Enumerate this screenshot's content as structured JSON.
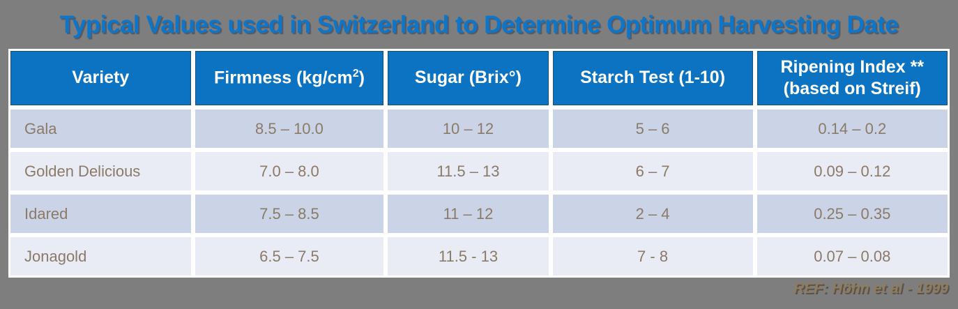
{
  "title": "Typical Values used in Switzerland to Determine Optimum Harvesting Date",
  "reference": "REF: Höhn et al - 1999",
  "colors": {
    "background": "#7E7E7E",
    "title_blue": "#0E76C8",
    "header_blue": "#0B73C1",
    "row_odd": "#CBD4E6",
    "row_even": "#E9ECF4",
    "cell_text": "#8B7A67",
    "reference_text": "#8E7C5C"
  },
  "table": {
    "headers": {
      "variety": "Variety",
      "firmness_prefix": "Firmness (kg/cm",
      "firmness_sup": "2",
      "firmness_suffix": ")",
      "sugar": "Sugar (Brix°)",
      "starch": "Starch Test (1-10)",
      "ripening_line1": "Ripening Index **",
      "ripening_line2": "(based on Streif)"
    },
    "rows": [
      {
        "variety": "Gala",
        "firmness": "8.5 – 10.0",
        "sugar": "10 – 12",
        "starch": "5 – 6",
        "ripening": "0.14 – 0.2"
      },
      {
        "variety": "Golden Delicious",
        "firmness": "7.0 – 8.0",
        "sugar": "11.5 – 13",
        "starch": "6 – 7",
        "ripening": "0.09 – 0.12"
      },
      {
        "variety": "Idared",
        "firmness": "7.5 – 8.5",
        "sugar": "11 – 12",
        "starch": "2 – 4",
        "ripening": "0.25 – 0.35"
      },
      {
        "variety": "Jonagold",
        "firmness": "6.5 – 7.5",
        "sugar": "11.5 - 13",
        "starch": "7 - 8",
        "ripening": "0.07 – 0.08"
      }
    ]
  }
}
